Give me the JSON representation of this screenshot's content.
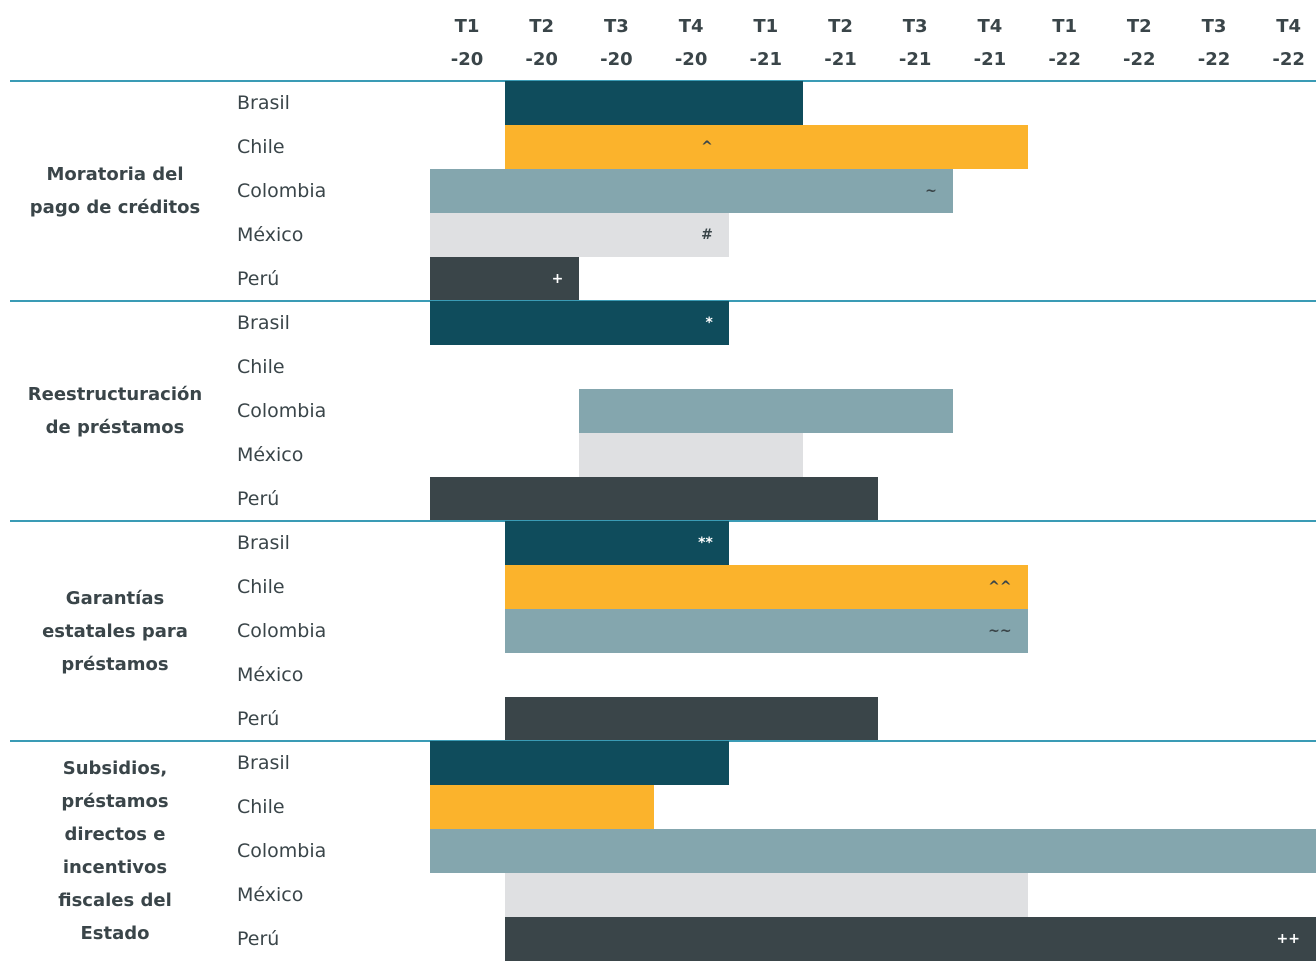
{
  "columns": [
    {
      "q": "T1",
      "y": "-20"
    },
    {
      "q": "T2",
      "y": "-20"
    },
    {
      "q": "T3",
      "y": "-20"
    },
    {
      "q": "T4",
      "y": "-20"
    },
    {
      "q": "T1",
      "y": "-21"
    },
    {
      "q": "T2",
      "y": "-21"
    },
    {
      "q": "T3",
      "y": "-21"
    },
    {
      "q": "T4",
      "y": "-21"
    },
    {
      "q": "T1",
      "y": "-22"
    },
    {
      "q": "T2",
      "y": "-22"
    },
    {
      "q": "T3",
      "y": "-22"
    },
    {
      "q": "T4",
      "y": "-22"
    }
  ],
  "colors": {
    "Brasil": "#0f4c5c",
    "Chile": "#fbb32c",
    "Colombia": "#84a6ae",
    "México": "#dfe0e2",
    "Perú": "#3a4549"
  },
  "groups": [
    {
      "label": [
        "Moratoria del",
        "pago de créditos"
      ],
      "rows": [
        {
          "label": "Brasil",
          "start": 1,
          "end": 4
        },
        {
          "label": "Chile",
          "start": 1,
          "end": 7,
          "marker": "^",
          "marker_col": 3
        },
        {
          "label": "Colombia",
          "start": 0,
          "end": 6,
          "marker": "~",
          "marker_col": 6
        },
        {
          "label": "México",
          "start": 0,
          "end": 3,
          "marker": "#",
          "marker_col": 3
        },
        {
          "label": "Perú",
          "start": 0,
          "end": 1,
          "marker": "+",
          "marker_col": 1
        }
      ]
    },
    {
      "label": [
        "Reestructuración",
        "de préstamos"
      ],
      "rows": [
        {
          "label": "Brasil",
          "start": 0,
          "end": 3,
          "marker": "*",
          "marker_col": 3
        },
        {
          "label": "Chile"
        },
        {
          "label": "Colombia",
          "start": 2,
          "end": 6
        },
        {
          "label": "México",
          "start": 2,
          "end": 4
        },
        {
          "label": "Perú",
          "start": 0,
          "end": 5
        }
      ]
    },
    {
      "label": [
        "Garantías",
        "estatales para",
        "préstamos"
      ],
      "rows": [
        {
          "label": "Brasil",
          "start": 1,
          "end": 3,
          "marker": "**",
          "marker_col": 3
        },
        {
          "label": "Chile",
          "start": 1,
          "end": 7,
          "marker": "^^",
          "marker_col": 7
        },
        {
          "label": "Colombia",
          "start": 1,
          "end": 7,
          "marker": "~~",
          "marker_col": 7
        },
        {
          "label": "México"
        },
        {
          "label": "Perú",
          "start": 1,
          "end": 5
        }
      ]
    },
    {
      "label": [
        "Subsidios,",
        "préstamos",
        "directos e",
        "incentivos",
        "fiscales del",
        "Estado"
      ],
      "rows": [
        {
          "label": "Brasil",
          "start": 0,
          "end": 3
        },
        {
          "label": "Chile",
          "start": 0,
          "end": 2
        },
        {
          "label": "Colombia",
          "start": 0,
          "end": 11
        },
        {
          "label": "México",
          "start": 1,
          "end": 7
        },
        {
          "label": "Perú",
          "start": 1,
          "end": 11,
          "marker": "++",
          "marker_col": 11
        }
      ]
    }
  ]
}
